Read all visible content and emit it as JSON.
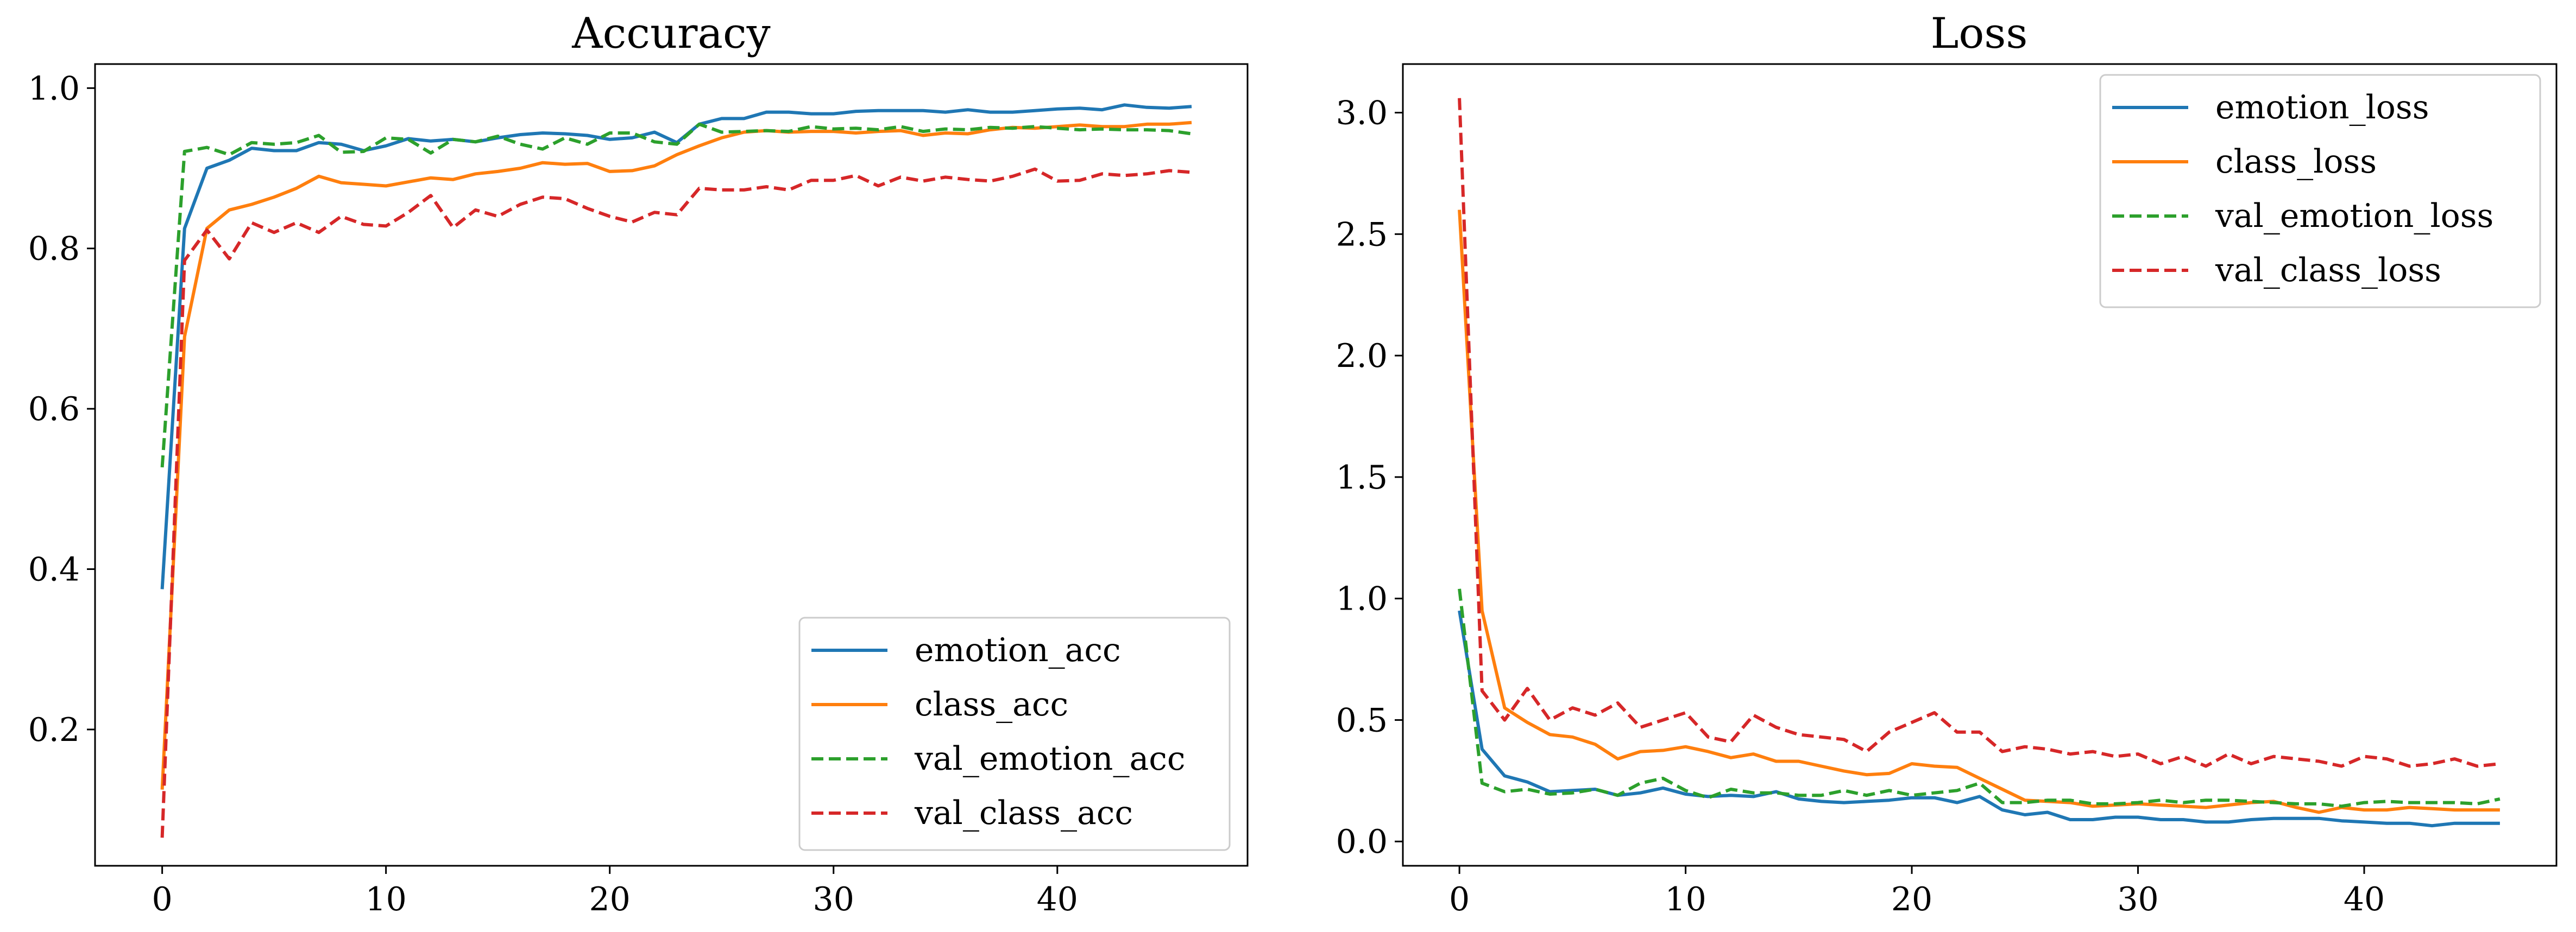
{
  "colors": {
    "emotion": "#1f77b4",
    "class": "#ff7f0e",
    "val_emotion": "#2ca02c",
    "val_class": "#d62728"
  },
  "chart_data": [
    {
      "type": "line",
      "title": "Accuracy",
      "xlabel": "",
      "ylabel": "",
      "xlim": [
        -3,
        48.5
      ],
      "ylim": [
        0.03,
        1.03
      ],
      "xticks": [
        0,
        10,
        20,
        30,
        40
      ],
      "yticks": [
        0.2,
        0.4,
        0.6,
        0.8,
        1.0
      ],
      "legend_position": "lower-right",
      "grid": false,
      "series": [
        {
          "name": "emotion_acc",
          "style": "solid",
          "color_key": "emotion",
          "values": [
            0.375,
            0.825,
            0.9,
            0.91,
            0.925,
            0.922,
            0.922,
            0.932,
            0.93,
            0.922,
            0.928,
            0.937,
            0.934,
            0.936,
            0.933,
            0.938,
            0.942,
            0.944,
            0.943,
            0.941,
            0.936,
            0.938,
            0.945,
            0.932,
            0.955,
            0.962,
            0.962,
            0.97,
            0.97,
            0.968,
            0.968,
            0.971,
            0.972,
            0.972,
            0.972,
            0.97,
            0.973,
            0.97,
            0.97,
            0.972,
            0.974,
            0.975,
            0.973,
            0.979,
            0.976,
            0.975,
            0.977
          ]
        },
        {
          "name": "class_acc",
          "style": "solid",
          "color_key": "class",
          "values": [
            0.125,
            0.69,
            0.825,
            0.848,
            0.855,
            0.864,
            0.875,
            0.89,
            0.882,
            0.88,
            0.878,
            0.883,
            0.888,
            0.886,
            0.893,
            0.896,
            0.9,
            0.907,
            0.905,
            0.906,
            0.896,
            0.897,
            0.903,
            0.917,
            0.928,
            0.938,
            0.945,
            0.947,
            0.945,
            0.946,
            0.946,
            0.944,
            0.946,
            0.947,
            0.941,
            0.944,
            0.943,
            0.948,
            0.951,
            0.95,
            0.952,
            0.954,
            0.952,
            0.952,
            0.955,
            0.955,
            0.957
          ]
        },
        {
          "name": "val_emotion_acc",
          "style": "dashed",
          "color_key": "val_emotion",
          "values": [
            0.527,
            0.921,
            0.926,
            0.917,
            0.932,
            0.93,
            0.932,
            0.941,
            0.92,
            0.921,
            0.938,
            0.936,
            0.919,
            0.936,
            0.933,
            0.94,
            0.93,
            0.924,
            0.938,
            0.93,
            0.944,
            0.944,
            0.933,
            0.93,
            0.955,
            0.945,
            0.946,
            0.947,
            0.946,
            0.952,
            0.949,
            0.95,
            0.948,
            0.952,
            0.946,
            0.949,
            0.948,
            0.951,
            0.95,
            0.952,
            0.95,
            0.948,
            0.949,
            0.948,
            0.948,
            0.947,
            0.943
          ]
        },
        {
          "name": "val_class_acc",
          "style": "dashed",
          "color_key": "val_class",
          "values": [
            0.065,
            0.785,
            0.823,
            0.787,
            0.832,
            0.82,
            0.832,
            0.82,
            0.84,
            0.83,
            0.828,
            0.845,
            0.866,
            0.826,
            0.848,
            0.84,
            0.855,
            0.864,
            0.862,
            0.85,
            0.84,
            0.833,
            0.845,
            0.842,
            0.875,
            0.873,
            0.873,
            0.877,
            0.873,
            0.885,
            0.885,
            0.891,
            0.878,
            0.889,
            0.884,
            0.889,
            0.886,
            0.884,
            0.89,
            0.899,
            0.884,
            0.885,
            0.893,
            0.891,
            0.893,
            0.897,
            0.895
          ]
        }
      ]
    },
    {
      "type": "line",
      "title": "Loss",
      "xlabel": "",
      "ylabel": "",
      "xlim": [
        -2.5,
        48.5
      ],
      "ylim": [
        -0.1,
        3.2
      ],
      "xticks": [
        0,
        10,
        20,
        30,
        40
      ],
      "yticks": [
        0.0,
        0.5,
        1.0,
        1.5,
        2.0,
        2.5,
        3.0
      ],
      "legend_position": "upper-right",
      "grid": false,
      "series": [
        {
          "name": "emotion_loss",
          "style": "solid",
          "color_key": "emotion",
          "values": [
            0.95,
            0.38,
            0.27,
            0.245,
            0.205,
            0.21,
            0.215,
            0.19,
            0.2,
            0.22,
            0.195,
            0.185,
            0.19,
            0.185,
            0.205,
            0.175,
            0.165,
            0.16,
            0.165,
            0.17,
            0.18,
            0.18,
            0.16,
            0.185,
            0.13,
            0.11,
            0.12,
            0.09,
            0.09,
            0.1,
            0.1,
            0.09,
            0.09,
            0.08,
            0.08,
            0.09,
            0.095,
            0.095,
            0.095,
            0.085,
            0.08,
            0.075,
            0.075,
            0.065,
            0.075,
            0.075,
            0.075
          ]
        },
        {
          "name": "class_loss",
          "style": "solid",
          "color_key": "class",
          "values": [
            2.6,
            0.95,
            0.55,
            0.49,
            0.44,
            0.43,
            0.4,
            0.34,
            0.37,
            0.375,
            0.39,
            0.37,
            0.345,
            0.36,
            0.33,
            0.33,
            0.31,
            0.29,
            0.275,
            0.28,
            0.32,
            0.31,
            0.305,
            0.26,
            0.215,
            0.17,
            0.165,
            0.16,
            0.145,
            0.15,
            0.155,
            0.15,
            0.145,
            0.14,
            0.15,
            0.16,
            0.165,
            0.14,
            0.12,
            0.14,
            0.13,
            0.13,
            0.14,
            0.135,
            0.13,
            0.13,
            0.13
          ]
        },
        {
          "name": "val_emotion_loss",
          "style": "dashed",
          "color_key": "val_emotion",
          "values": [
            1.04,
            0.24,
            0.205,
            0.215,
            0.195,
            0.2,
            0.215,
            0.19,
            0.24,
            0.26,
            0.21,
            0.18,
            0.215,
            0.2,
            0.2,
            0.19,
            0.19,
            0.21,
            0.19,
            0.21,
            0.19,
            0.2,
            0.21,
            0.24,
            0.16,
            0.16,
            0.17,
            0.17,
            0.155,
            0.155,
            0.16,
            0.17,
            0.16,
            0.17,
            0.17,
            0.165,
            0.16,
            0.155,
            0.155,
            0.145,
            0.16,
            0.165,
            0.16,
            0.16,
            0.16,
            0.155,
            0.175
          ]
        },
        {
          "name": "val_class_loss",
          "style": "dashed",
          "color_key": "val_class",
          "values": [
            3.06,
            0.62,
            0.5,
            0.63,
            0.5,
            0.55,
            0.52,
            0.57,
            0.47,
            0.5,
            0.53,
            0.43,
            0.41,
            0.52,
            0.47,
            0.44,
            0.43,
            0.42,
            0.37,
            0.45,
            0.49,
            0.53,
            0.45,
            0.45,
            0.37,
            0.39,
            0.38,
            0.36,
            0.37,
            0.35,
            0.36,
            0.32,
            0.35,
            0.31,
            0.36,
            0.32,
            0.35,
            0.34,
            0.33,
            0.31,
            0.35,
            0.34,
            0.31,
            0.32,
            0.34,
            0.31,
            0.32
          ]
        }
      ]
    }
  ]
}
